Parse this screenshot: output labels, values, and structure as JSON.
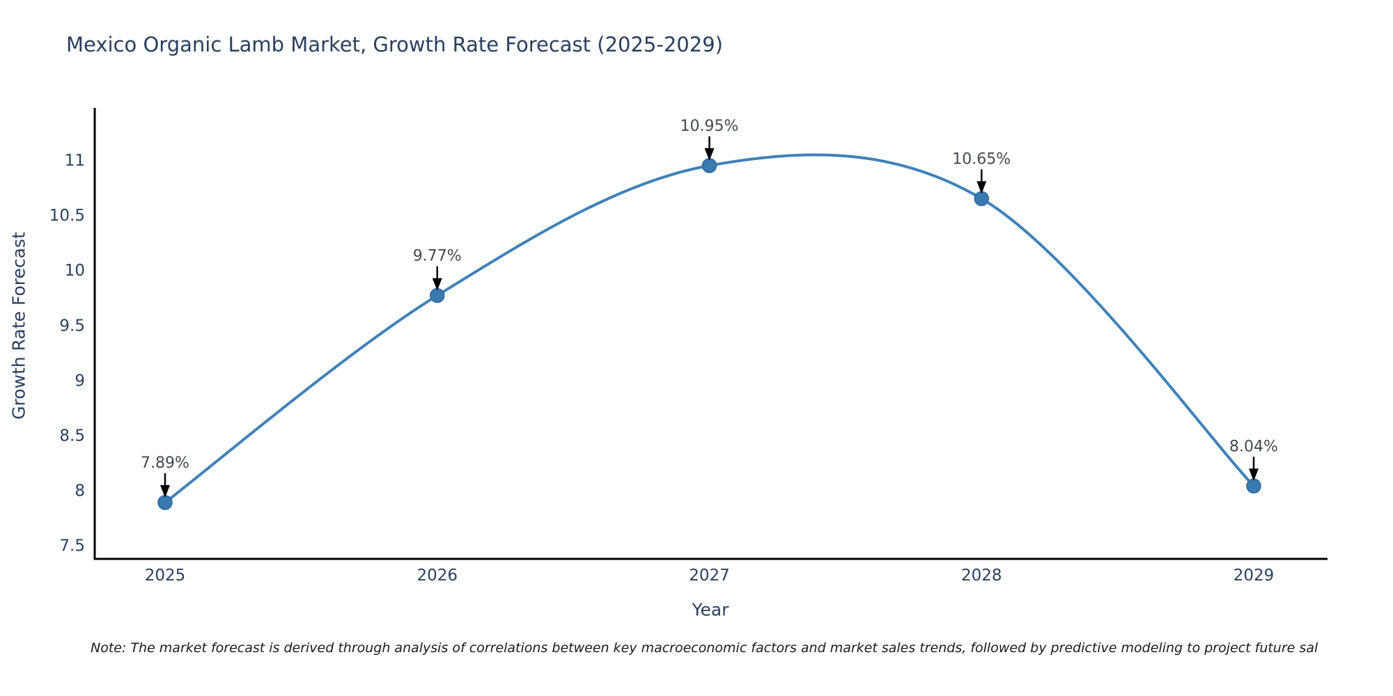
{
  "chart_data": {
    "type": "line",
    "title": "Mexico Organic Lamb Market, Growth Rate Forecast (2025-2029)",
    "xlabel": "Year",
    "ylabel": "Growth Rate Forecast",
    "x": [
      2025,
      2026,
      2027,
      2028,
      2029
    ],
    "values": [
      7.89,
      9.77,
      10.95,
      10.65,
      8.04
    ],
    "point_labels": [
      "7.89%",
      "9.77%",
      "10.95%",
      "10.65%",
      "8.04%"
    ],
    "yticks": [
      7.5,
      8,
      8.5,
      9,
      9.5,
      10,
      10.5,
      11
    ],
    "ylim": [
      7.4,
      11.5
    ],
    "line_shape": "spline",
    "grid": false,
    "legend": "none",
    "colors": {
      "line": "#3f81ba",
      "marker": "#3a79b2",
      "marker_edge": "#2f6699",
      "axis": "#000000",
      "tick_text": "#2a3f5f",
      "annotation_text": "#43494f",
      "arrow": "#000000"
    },
    "note": "Note: The market forecast is derived through analysis of correlations between key macroeconomic factors and market sales trends, followed by predictive modeling to project future sal"
  }
}
